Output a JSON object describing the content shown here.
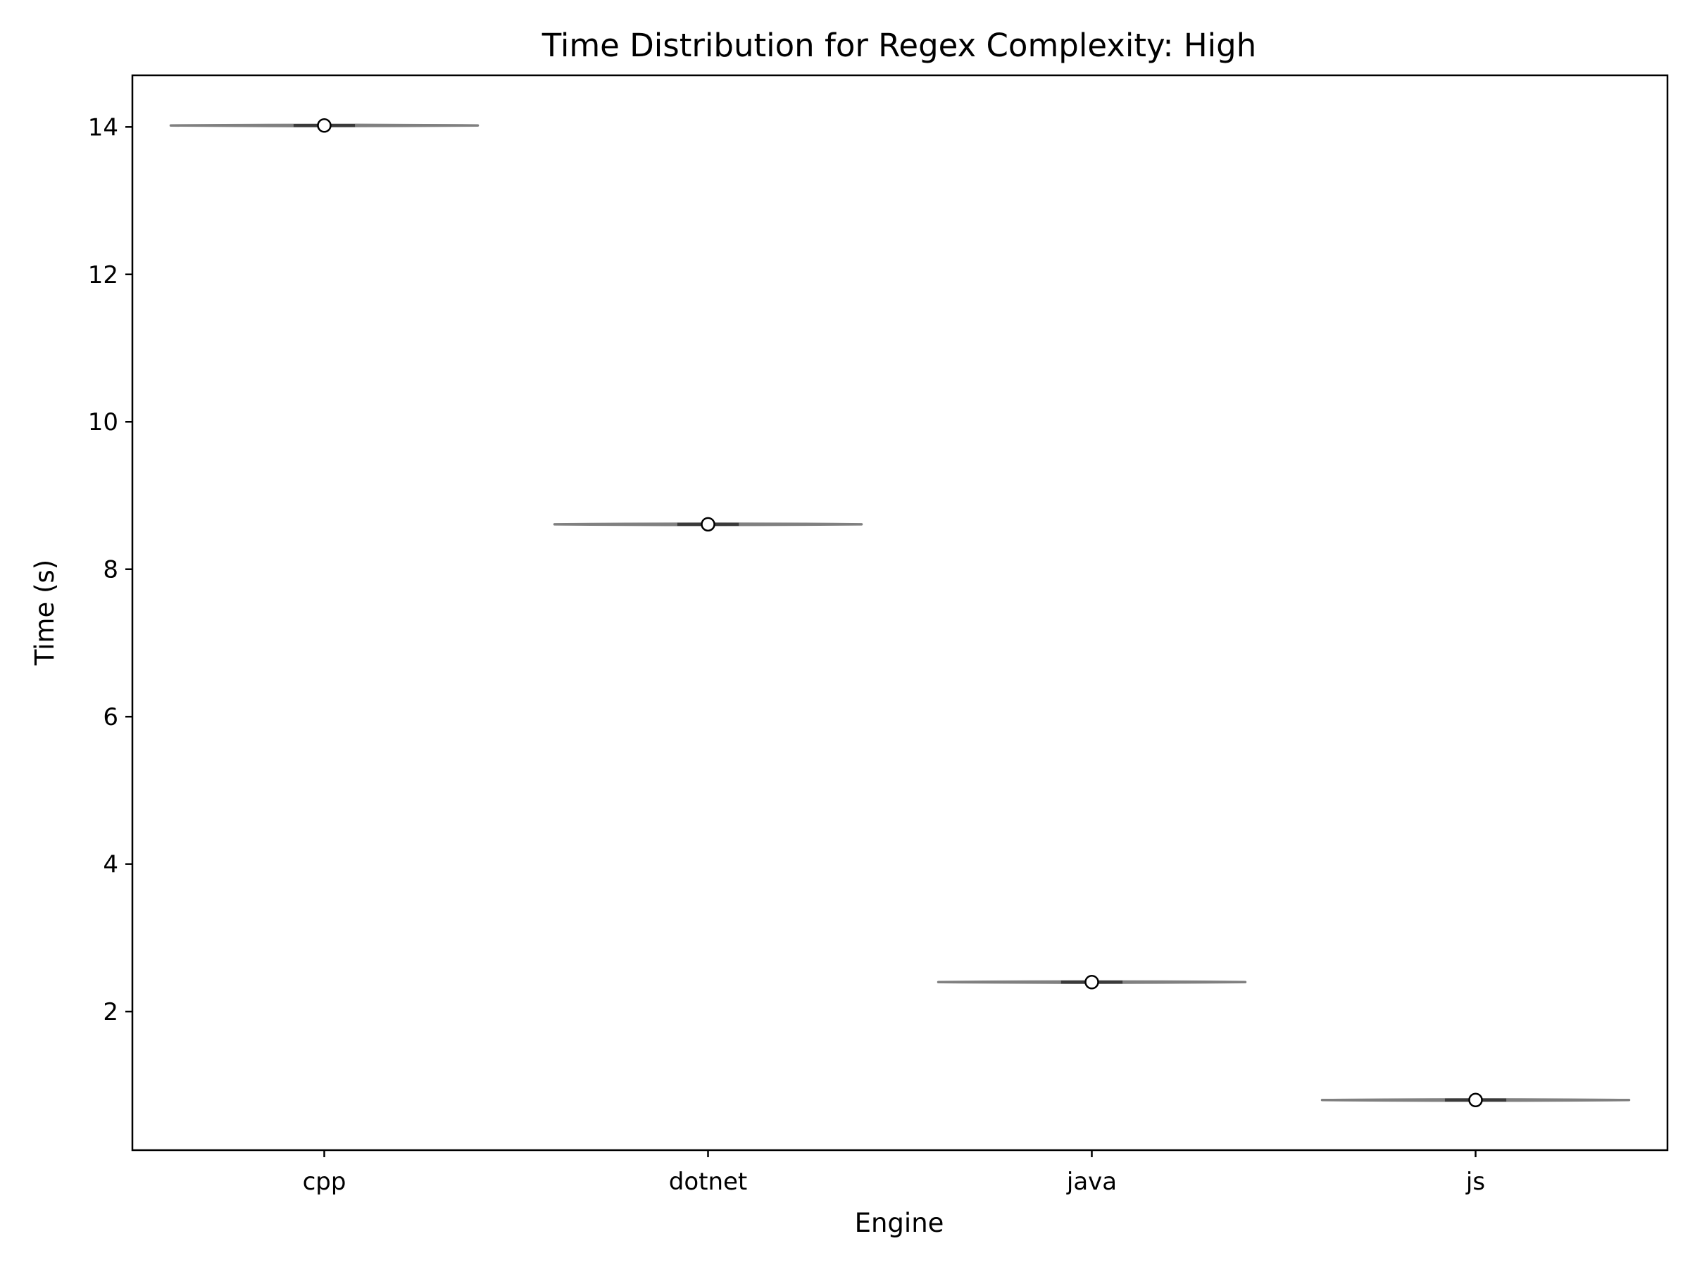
{
  "chart_data": {
    "type": "violin",
    "title": "Time Distribution for Regex Complexity: High",
    "xlabel": "Engine",
    "ylabel": "Time (s)",
    "categories": [
      "cpp",
      "dotnet",
      "java",
      "js"
    ],
    "medians": [
      14.02,
      8.61,
      2.4,
      0.8
    ],
    "ranges": [
      [
        14.01,
        14.03
      ],
      [
        8.6,
        8.62
      ],
      [
        2.39,
        2.41
      ],
      [
        0.79,
        0.81
      ]
    ],
    "yticks": [
      2,
      4,
      6,
      8,
      10,
      12,
      14
    ],
    "ylim": [
      0.12,
      14.7
    ],
    "grid": false,
    "colors": {
      "violin": "#808080",
      "box": "#3a3a3a",
      "median_marker_fill": "#ffffff",
      "median_marker_edge": "#000000",
      "axes": "#000000"
    }
  }
}
